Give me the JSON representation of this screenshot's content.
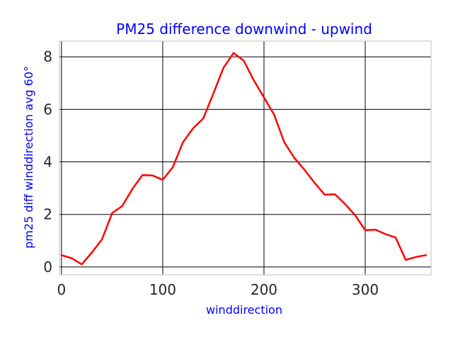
{
  "chart_data": {
    "type": "line",
    "title": "PM25 difference downwind - upwind",
    "xlabel": "winddirection",
    "ylabel": "pm25 diff winddirection avg 60°",
    "xlim": [
      -2,
      365
    ],
    "ylim": [
      -0.3,
      8.6
    ],
    "xticks": [
      0,
      100,
      200,
      300
    ],
    "yticks": [
      0,
      2,
      4,
      6,
      8
    ],
    "grid": true,
    "series": [
      {
        "color": "#ff0000",
        "x": [
          0,
          10,
          20,
          30,
          40,
          50,
          60,
          70,
          80,
          90,
          100,
          110,
          120,
          130,
          140,
          150,
          160,
          170,
          180,
          190,
          200,
          210,
          220,
          230,
          240,
          250,
          260,
          270,
          280,
          290,
          300,
          310,
          320,
          330,
          340,
          350,
          360
        ],
        "y": [
          0.45,
          0.33,
          0.1,
          0.55,
          1.05,
          2.05,
          2.32,
          2.97,
          3.5,
          3.48,
          3.32,
          3.8,
          4.75,
          5.28,
          5.65,
          6.6,
          7.58,
          8.15,
          7.85,
          7.1,
          6.45,
          5.8,
          4.75,
          4.15,
          3.7,
          3.2,
          2.75,
          2.77,
          2.4,
          1.97,
          1.4,
          1.42,
          1.25,
          1.12,
          0.27,
          0.38,
          0.45
        ]
      }
    ]
  }
}
